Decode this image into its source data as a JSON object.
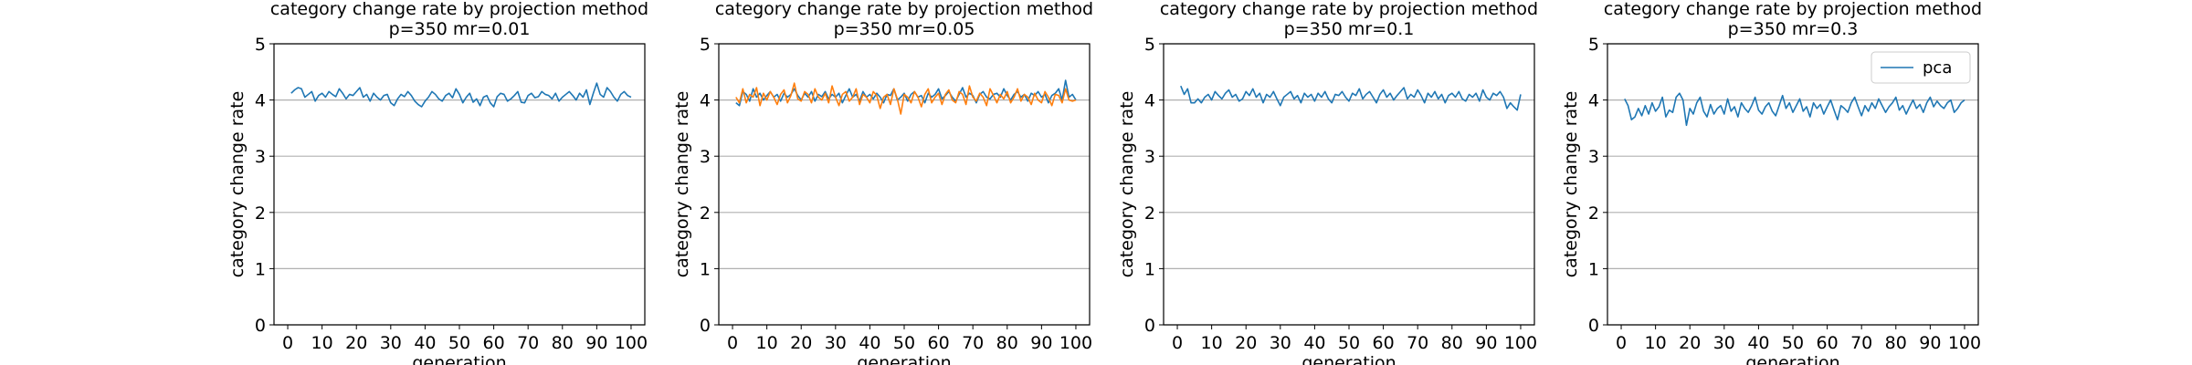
{
  "chart_data": [
    {
      "type": "line",
      "title": "category change rate by projection method",
      "subtitle": "p=350 mr=0.01",
      "xlabel": "generation",
      "ylabel": "category change rate",
      "xlim": [
        -4,
        104
      ],
      "ylim": [
        0,
        5
      ],
      "xticks": [
        0,
        10,
        20,
        30,
        40,
        50,
        60,
        70,
        80,
        90,
        100
      ],
      "yticks": [
        0,
        1,
        2,
        3,
        4,
        5
      ],
      "grid": "y",
      "legend": null,
      "series": [
        {
          "color": "#1f77b4",
          "x_start": 1,
          "x_step": 1,
          "values": [
            4.12,
            4.18,
            4.22,
            4.2,
            4.05,
            4.1,
            4.15,
            3.98,
            4.08,
            4.12,
            4.05,
            4.15,
            4.1,
            4.06,
            4.2,
            4.12,
            4.02,
            4.1,
            4.08,
            4.15,
            4.22,
            4.05,
            4.1,
            3.98,
            4.12,
            4.05,
            4.0,
            4.08,
            4.1,
            3.95,
            3.9,
            4.02,
            4.1,
            4.06,
            4.15,
            4.08,
            3.98,
            3.92,
            3.88,
            3.98,
            4.05,
            4.15,
            4.1,
            4.02,
            3.98,
            4.08,
            4.12,
            4.04,
            4.2,
            4.1,
            3.95,
            4.05,
            4.12,
            3.96,
            4.02,
            3.9,
            4.05,
            4.08,
            3.95,
            3.88,
            4.06,
            4.12,
            4.1,
            3.98,
            4.02,
            4.08,
            4.15,
            3.96,
            3.95,
            4.08,
            4.12,
            4.04,
            4.06,
            4.15,
            4.1,
            4.08,
            4.02,
            4.12,
            3.98,
            4.05,
            4.1,
            4.15,
            4.08,
            4.0,
            4.12,
            4.05,
            4.18,
            3.92,
            4.12,
            4.3,
            4.1,
            4.05,
            4.22,
            4.15,
            4.05,
            3.98,
            4.1,
            4.15,
            4.08,
            4.05
          ]
        }
      ]
    },
    {
      "type": "line",
      "title": "category change rate by projection method",
      "subtitle": "p=350 mr=0.05",
      "xlabel": "generation",
      "ylabel": "category change rate",
      "xlim": [
        -4,
        104
      ],
      "ylim": [
        0,
        5
      ],
      "xticks": [
        0,
        10,
        20,
        30,
        40,
        50,
        60,
        70,
        80,
        90,
        100
      ],
      "yticks": [
        0,
        1,
        2,
        3,
        4,
        5
      ],
      "grid": "y",
      "legend": null,
      "series": [
        {
          "color": "#1f77b4",
          "x_start": 1,
          "x_step": 1,
          "values": [
            3.95,
            3.9,
            4.15,
            4.1,
            3.98,
            4.2,
            4.05,
            4.12,
            4.0,
            4.08,
            4.15,
            4.05,
            4.1,
            3.98,
            4.12,
            4.05,
            4.1,
            4.2,
            4.08,
            4.0,
            4.12,
            4.05,
            4.15,
            3.98,
            4.1,
            4.06,
            4.15,
            4.02,
            4.1,
            4.05,
            4.12,
            3.95,
            4.08,
            4.2,
            4.05,
            4.1,
            3.98,
            4.15,
            4.05,
            4.1,
            4.02,
            4.12,
            4.05,
            3.95,
            4.1,
            4.08,
            4.2,
            4.0,
            4.05,
            4.12,
            3.98,
            4.1,
            4.15,
            4.05,
            4.08,
            3.95,
            4.12,
            4.05,
            4.1,
            4.2,
            4.02,
            4.08,
            4.15,
            4.05,
            3.98,
            4.1,
            4.22,
            4.05,
            4.12,
            4.08,
            3.95,
            4.1,
            4.15,
            4.05,
            4.02,
            4.1,
            4.12,
            4.05,
            4.2,
            4.08,
            4.0,
            4.1,
            4.15,
            4.05,
            4.1,
            3.98,
            4.12,
            4.08,
            4.15,
            4.05,
            4.1,
            3.95,
            4.08,
            4.12,
            4.2,
            4.0,
            4.35,
            4.05,
            4.1,
            4.0
          ]
        },
        {
          "color": "#ff7f0e",
          "x_start": 1,
          "x_step": 1,
          "values": [
            4.05,
            3.95,
            4.2,
            3.95,
            4.1,
            4.05,
            4.22,
            3.9,
            4.12,
            4.0,
            4.15,
            4.05,
            3.92,
            4.1,
            4.18,
            3.95,
            4.08,
            4.3,
            4.02,
            3.98,
            4.15,
            4.1,
            3.95,
            4.2,
            4.05,
            4.0,
            4.12,
            3.95,
            4.25,
            4.05,
            3.9,
            4.1,
            4.15,
            3.98,
            4.05,
            4.2,
            3.92,
            4.1,
            4.05,
            3.95,
            4.15,
            4.08,
            3.85,
            4.05,
            4.1,
            3.92,
            4.2,
            4.02,
            3.75,
            4.1,
            4.05,
            3.95,
            4.15,
            4.05,
            3.88,
            4.1,
            4.2,
            3.95,
            4.05,
            4.12,
            3.92,
            4.1,
            4.18,
            4.0,
            3.95,
            4.15,
            4.1,
            3.92,
            4.25,
            4.05,
            3.98,
            4.12,
            4.05,
            3.9,
            4.2,
            4.08,
            3.95,
            4.1,
            4.02,
            4.15,
            3.95,
            4.05,
            4.2,
            3.98,
            4.1,
            4.05,
            3.92,
            4.12,
            4.0,
            3.95,
            4.15,
            4.05,
            3.9,
            4.1,
            4.08,
            3.95,
            4.2,
            4.0,
            3.98,
            4.0
          ]
        }
      ]
    },
    {
      "type": "line",
      "title": "category change rate by projection method",
      "subtitle": "p=350 mr=0.1",
      "xlabel": "generation",
      "ylabel": "category change rate",
      "xlim": [
        -4,
        104
      ],
      "ylim": [
        0,
        5
      ],
      "xticks": [
        0,
        10,
        20,
        30,
        40,
        50,
        60,
        70,
        80,
        90,
        100
      ],
      "yticks": [
        0,
        1,
        2,
        3,
        4,
        5
      ],
      "grid": "y",
      "legend": null,
      "series": [
        {
          "color": "#1f77b4",
          "x_start": 1,
          "x_step": 1,
          "values": [
            4.25,
            4.1,
            4.2,
            3.95,
            3.95,
            4.02,
            3.95,
            4.05,
            4.1,
            4.0,
            4.15,
            4.08,
            4.02,
            4.12,
            4.18,
            4.05,
            4.1,
            3.98,
            4.02,
            4.15,
            4.08,
            4.2,
            4.05,
            4.12,
            3.95,
            4.1,
            4.05,
            4.15,
            4.02,
            3.9,
            4.05,
            4.1,
            4.15,
            4.02,
            4.08,
            3.95,
            4.12,
            4.05,
            4.1,
            3.98,
            4.12,
            4.05,
            4.15,
            4.02,
            3.95,
            4.1,
            4.08,
            4.15,
            4.05,
            3.98,
            4.12,
            4.08,
            4.2,
            4.02,
            4.1,
            4.15,
            4.05,
            3.95,
            4.1,
            4.18,
            4.05,
            4.12,
            4.0,
            4.08,
            4.15,
            4.22,
            4.02,
            4.1,
            4.05,
            4.18,
            4.08,
            3.95,
            4.12,
            4.05,
            4.15,
            4.02,
            4.1,
            3.95,
            4.08,
            4.12,
            4.05,
            4.15,
            4.02,
            3.98,
            4.1,
            4.05,
            4.12,
            3.98,
            4.18,
            4.05,
            4.0,
            4.12,
            4.08,
            4.15,
            4.05,
            3.85,
            3.95,
            3.88,
            3.82,
            4.1
          ]
        }
      ]
    },
    {
      "type": "line",
      "title": "category change rate by projection method",
      "subtitle": "p=350 mr=0.3",
      "xlabel": "generation",
      "ylabel": "category change rate",
      "xlim": [
        -4,
        104
      ],
      "ylim": [
        0,
        5
      ],
      "xticks": [
        0,
        10,
        20,
        30,
        40,
        50,
        60,
        70,
        80,
        90,
        100
      ],
      "yticks": [
        0,
        1,
        2,
        3,
        4,
        5
      ],
      "grid": "y",
      "legend": "top-right",
      "series": [
        {
          "name": "pca",
          "color": "#1f77b4",
          "x_start": 1,
          "x_step": 1,
          "values": [
            4.02,
            3.9,
            3.65,
            3.7,
            3.85,
            3.72,
            3.9,
            3.75,
            3.95,
            3.8,
            3.88,
            4.05,
            3.7,
            3.82,
            3.78,
            4.05,
            4.12,
            4.0,
            3.55,
            3.85,
            3.75,
            3.95,
            4.05,
            3.8,
            3.7,
            3.92,
            3.75,
            3.85,
            3.9,
            3.75,
            4.02,
            3.8,
            3.88,
            3.7,
            3.95,
            3.85,
            3.78,
            3.9,
            4.05,
            3.82,
            3.75,
            3.88,
            3.95,
            3.8,
            3.72,
            3.9,
            4.08,
            3.85,
            3.95,
            3.78,
            3.9,
            4.02,
            3.8,
            3.88,
            3.7,
            3.95,
            3.85,
            3.92,
            3.75,
            3.88,
            4.0,
            3.82,
            3.65,
            3.9,
            3.85,
            3.78,
            3.95,
            4.05,
            3.88,
            3.72,
            3.9,
            3.8,
            3.95,
            3.85,
            4.02,
            3.9,
            3.78,
            3.88,
            3.95,
            4.05,
            3.82,
            3.9,
            3.75,
            3.88,
            4.0,
            3.85,
            3.92,
            3.78,
            3.95,
            4.05,
            3.88,
            3.98,
            3.9,
            3.85,
            3.95,
            4.0,
            3.78,
            3.85,
            3.95,
            4.0
          ]
        }
      ]
    }
  ]
}
